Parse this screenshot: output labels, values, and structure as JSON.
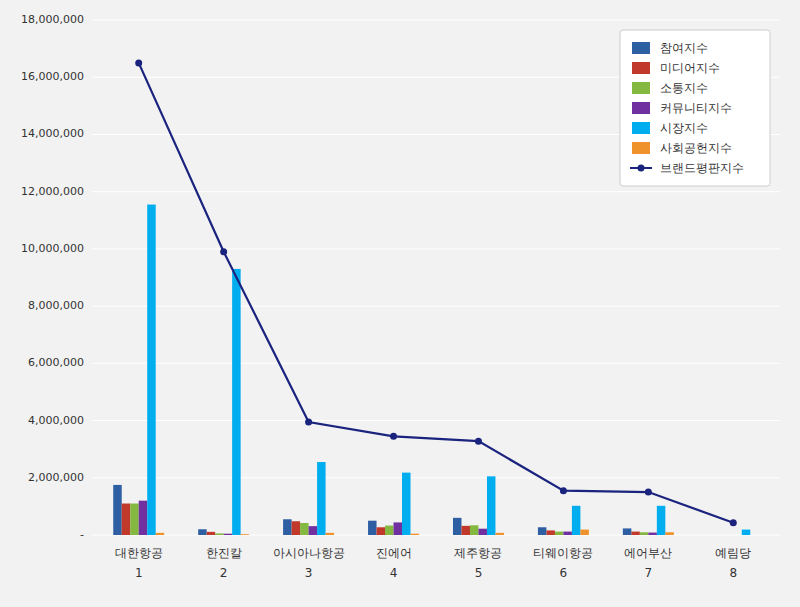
{
  "chart_data": {
    "type": "bar",
    "categories": [
      "대한항공",
      "한진칼",
      "아시아나항공",
      "진에어",
      "제주항공",
      "티웨이항공",
      "에어부산",
      "예림당"
    ],
    "annotations": [
      "1",
      "2",
      "3",
      "4",
      "5",
      "6",
      "7",
      "8"
    ],
    "series": [
      {
        "name": "참여지수",
        "color": "#2e5fa3",
        "values": [
          1750000,
          200000,
          550000,
          500000,
          600000,
          270000,
          230000,
          0
        ]
      },
      {
        "name": "미디어지수",
        "color": "#c0392b",
        "values": [
          1100000,
          110000,
          480000,
          270000,
          320000,
          160000,
          120000,
          0
        ]
      },
      {
        "name": "소통지수",
        "color": "#84b840",
        "values": [
          1100000,
          55000,
          420000,
          330000,
          340000,
          120000,
          95000,
          0
        ]
      },
      {
        "name": "커뮤니티지수",
        "color": "#7030a0",
        "values": [
          1200000,
          45000,
          310000,
          440000,
          220000,
          120000,
          85000,
          0
        ]
      },
      {
        "name": "시장지수",
        "color": "#00adef",
        "values": [
          11550000,
          9300000,
          2550000,
          2180000,
          2050000,
          1020000,
          1020000,
          190000
        ]
      },
      {
        "name": "사회공헌지수",
        "color": "#f0922b",
        "values": [
          75000,
          28000,
          75000,
          45000,
          75000,
          190000,
          95000,
          0
        ]
      },
      {
        "name": "브랜드평판지수",
        "type": "line",
        "marker": "circle",
        "color": "#1a237e",
        "values": [
          16500000,
          9900000,
          3950000,
          3450000,
          3280000,
          1550000,
          1500000,
          430000
        ]
      }
    ],
    "ylim": [
      0,
      18000000
    ],
    "yticks": [
      {
        "value": 0,
        "label": "-"
      },
      {
        "value": 2000000,
        "label": "2,000,000"
      },
      {
        "value": 4000000,
        "label": "4,000,000"
      },
      {
        "value": 6000000,
        "label": "6,000,000"
      },
      {
        "value": 8000000,
        "label": "8,000,000"
      },
      {
        "value": 10000000,
        "label": "10,000,000"
      },
      {
        "value": 12000000,
        "label": "12,000,000"
      },
      {
        "value": 14000000,
        "label": "14,000,000"
      },
      {
        "value": 16000000,
        "label": "16,000,000"
      },
      {
        "value": 18000000,
        "label": "18,000,000"
      }
    ],
    "grid": true,
    "legend": "upper-right"
  }
}
